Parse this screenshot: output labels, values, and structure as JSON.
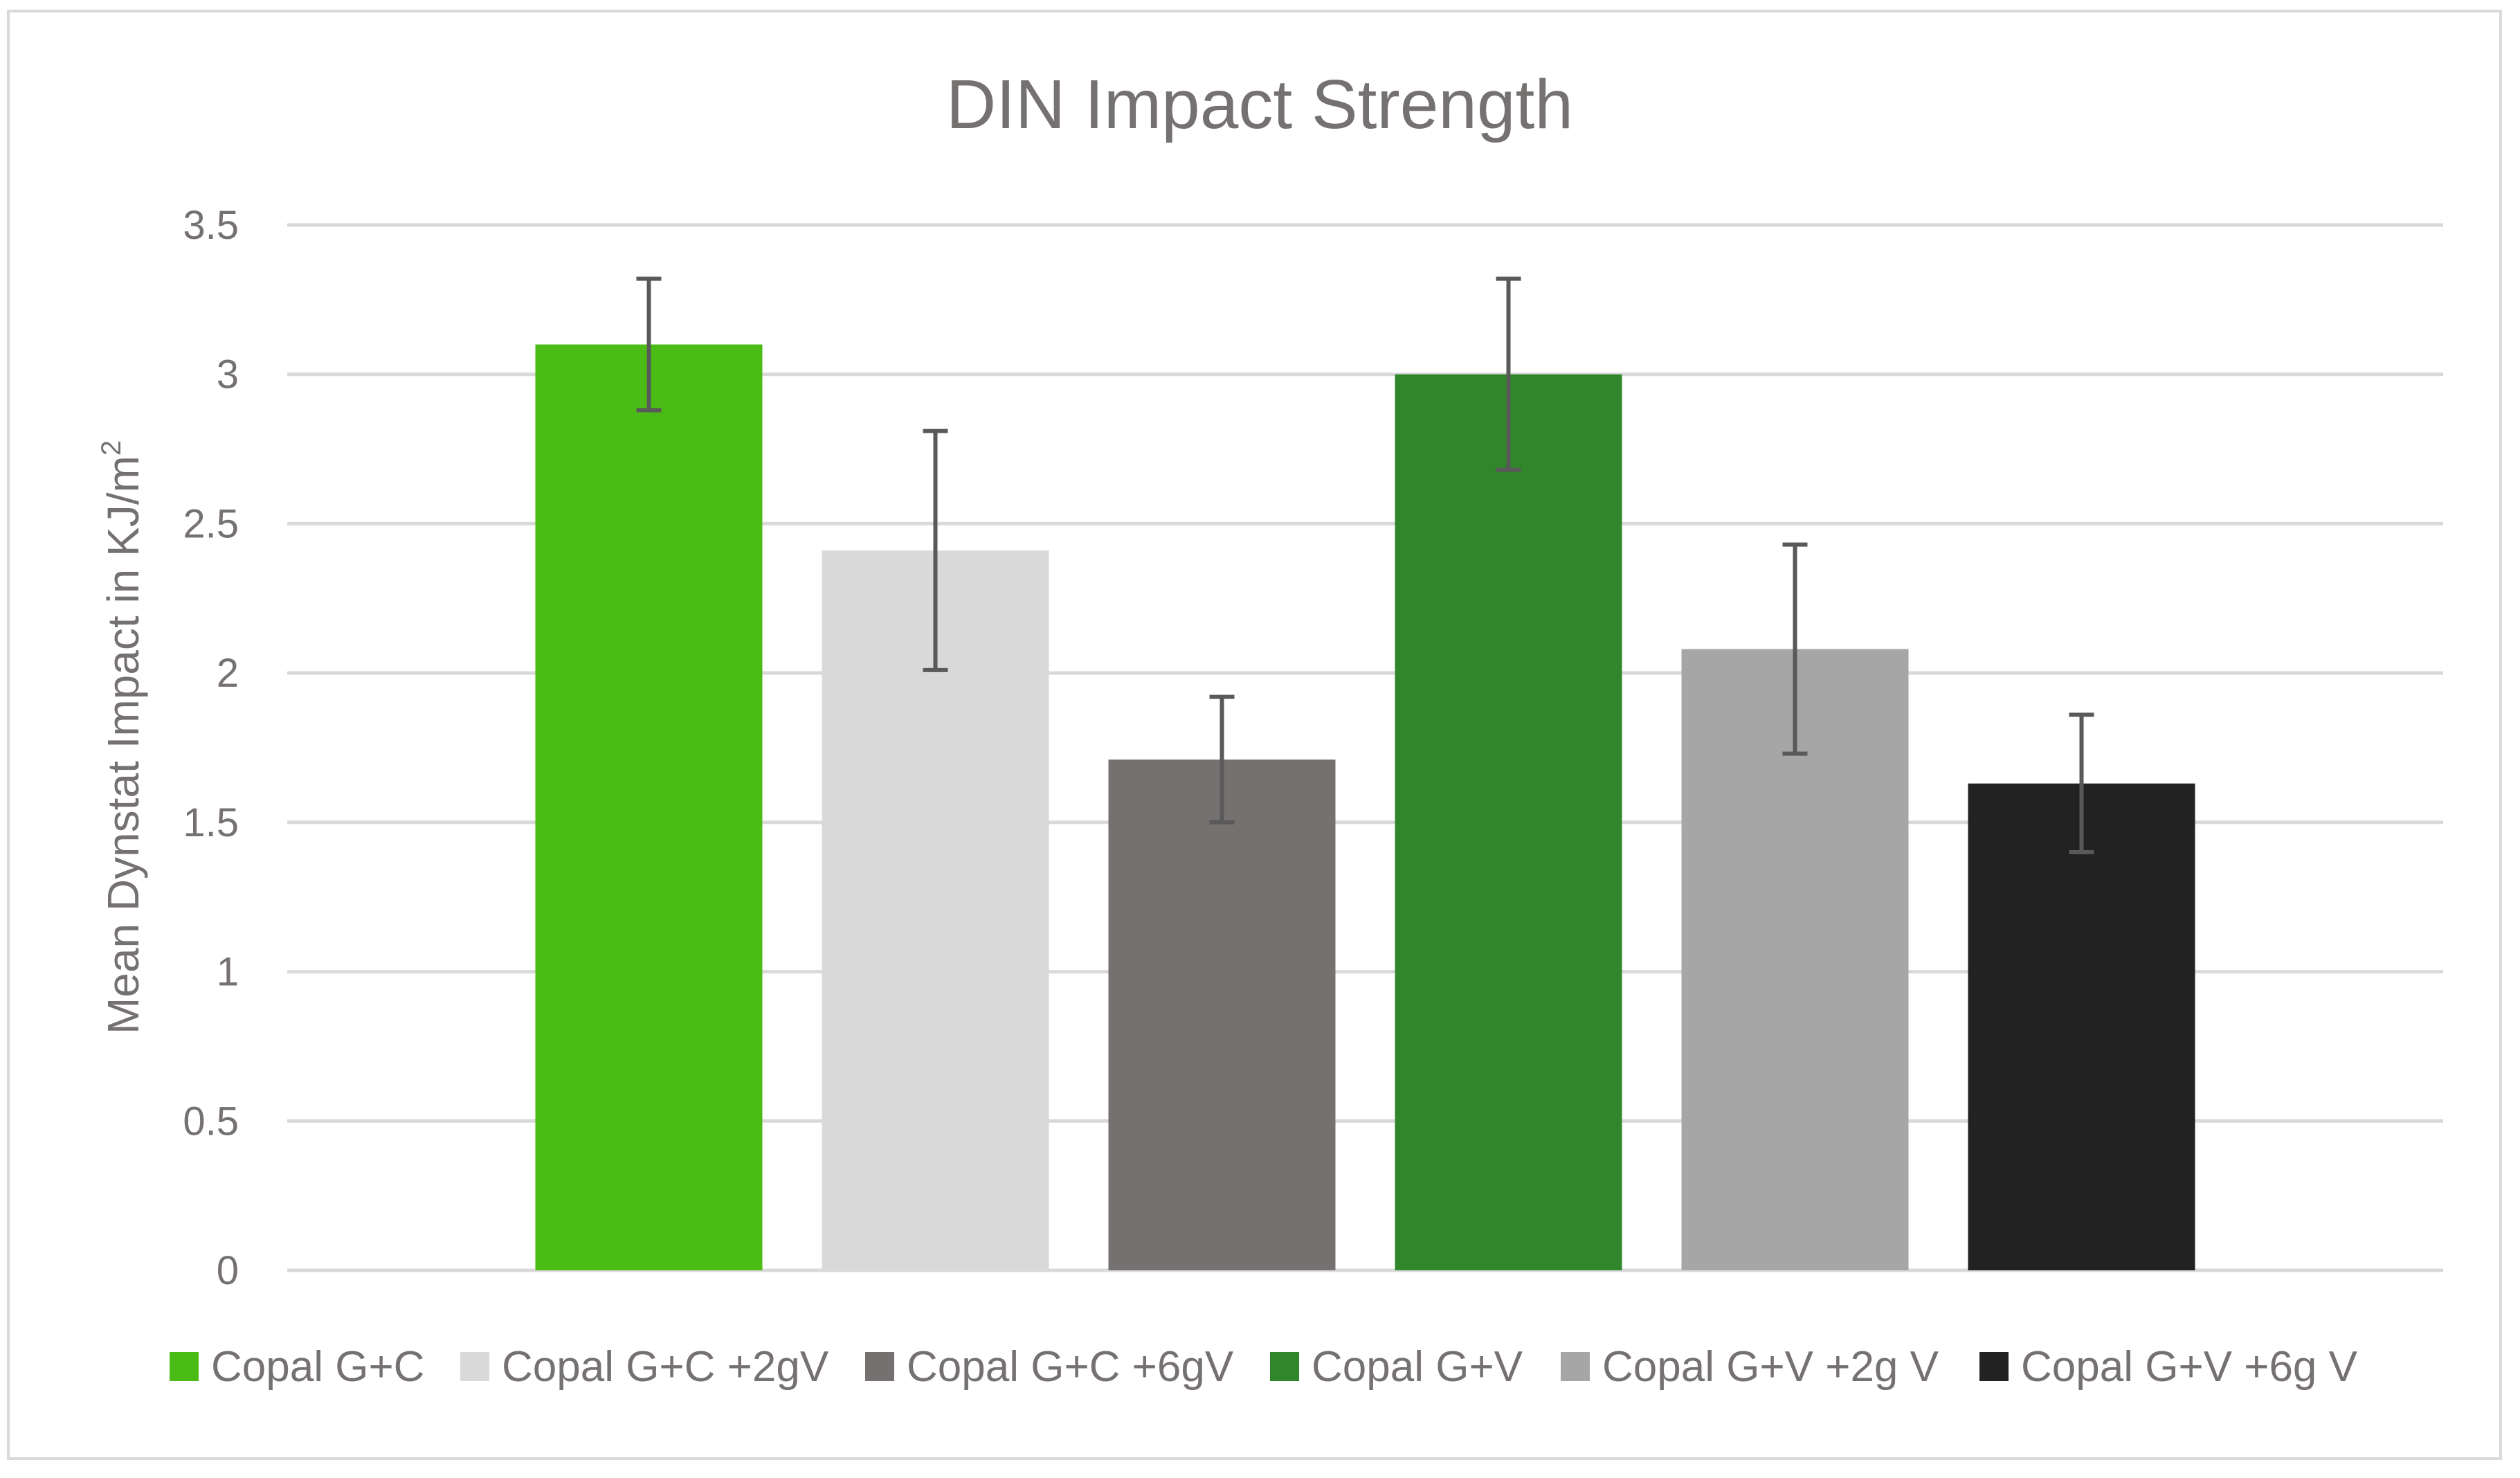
{
  "chart_data": {
    "type": "bar",
    "title": "DIN Impact Strength",
    "ylabel": "Mean Dynstat Impact in KJ/m",
    "ylabel_superscript": "2",
    "xlabel": "",
    "ylim": [
      0,
      3.5
    ],
    "ytick_values": [
      0,
      0.5,
      1,
      1.5,
      2,
      2.5,
      3,
      3.5
    ],
    "ytick_labels": [
      "0",
      "0.5",
      "1",
      "1.5",
      "2",
      "2.5",
      "3",
      "3.5"
    ],
    "grid": true,
    "legend_position": "bottom",
    "series": [
      {
        "name": "Copal G+C",
        "value": 3.1,
        "error_low": 2.88,
        "error_high": 3.32,
        "color": "#4bbc16"
      },
      {
        "name": "Copal G+C +2gV",
        "value": 2.41,
        "error_low": 2.01,
        "error_high": 2.81,
        "color": "#d9d9d9"
      },
      {
        "name": "Copal G+C +6gV",
        "value": 1.71,
        "error_low": 1.5,
        "error_high": 1.92,
        "color": "#767171"
      },
      {
        "name": "Copal G+V",
        "value": 3.0,
        "error_low": 2.68,
        "error_high": 3.32,
        "color": "#31862b"
      },
      {
        "name": "Copal G+V +2g V",
        "value": 2.08,
        "error_low": 1.73,
        "error_high": 2.43,
        "color": "#a6a6a6"
      },
      {
        "name": "Copal G+V +6g V",
        "value": 1.63,
        "error_low": 1.4,
        "error_high": 1.86,
        "color": "#222222"
      }
    ]
  }
}
